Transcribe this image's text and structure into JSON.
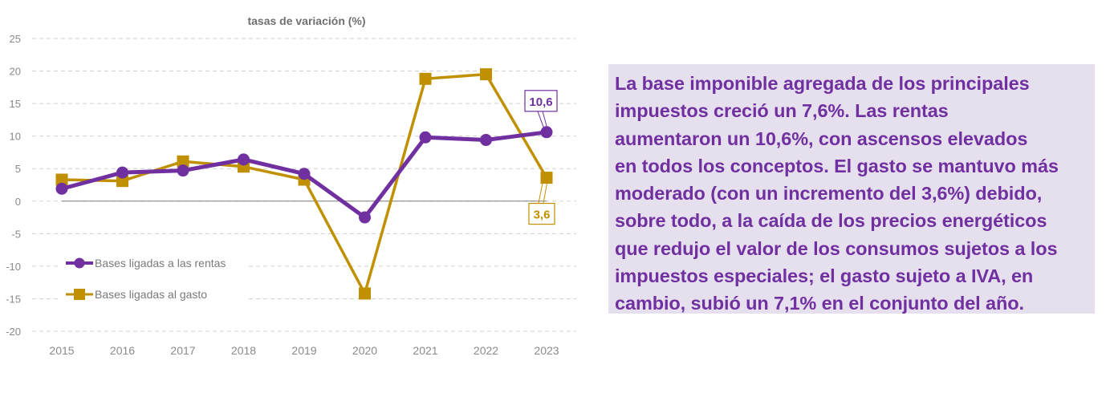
{
  "chart_data": {
    "type": "line",
    "title": "tasas de variación (%)",
    "xlabel": "",
    "ylabel": "",
    "categories": [
      "2015",
      "2016",
      "2017",
      "2018",
      "2019",
      "2020",
      "2021",
      "2022",
      "2023"
    ],
    "ylim": [
      -20,
      25
    ],
    "yticks": [
      25,
      20,
      15,
      10,
      5,
      0,
      -5,
      -10,
      -15,
      -20
    ],
    "ytick_labels": [
      "25",
      "20",
      "15",
      "10",
      "5",
      "0",
      "-5",
      "-10",
      "-15",
      "-20"
    ],
    "grid": true,
    "legend_position": "bottom-left",
    "series": [
      {
        "name": "Bases ligadas a las rentas",
        "marker": "circle",
        "color": "#7030a0",
        "values": [
          1.9,
          4.4,
          4.7,
          6.4,
          4.2,
          -2.5,
          9.8,
          9.4,
          10.6
        ]
      },
      {
        "name": "Bases ligadas al gasto",
        "marker": "square",
        "color": "#c09000",
        "values": [
          3.3,
          3.1,
          6.1,
          5.3,
          3.3,
          -14.2,
          18.8,
          19.5,
          3.6
        ]
      }
    ],
    "annotations": [
      {
        "series": 0,
        "category": "2023",
        "text": "10,6",
        "position": "above"
      },
      {
        "series": 1,
        "category": "2023",
        "text": "3,6",
        "position": "below"
      }
    ]
  },
  "text_panel": {
    "lead": "La base imponible agregada de los principales",
    "lines": [
      "impuestos creció un 7,6%. Las rentas",
      "aumentaron un 10,6%, con ascensos elevados",
      "en todos los conceptos. El gasto se mantuvo más",
      "moderado (con un incremento del 3,6%) debido,",
      "sobre todo, a la caída de los precios energéticos",
      "que redujo el valor de los consumos sujetos a los",
      "impuestos especiales; el gasto sujeto a IVA, en",
      "cambio, subió un 7,1% en el conjunto del año."
    ],
    "background": "#e5dfee",
    "text_color": "#7030a0"
  }
}
